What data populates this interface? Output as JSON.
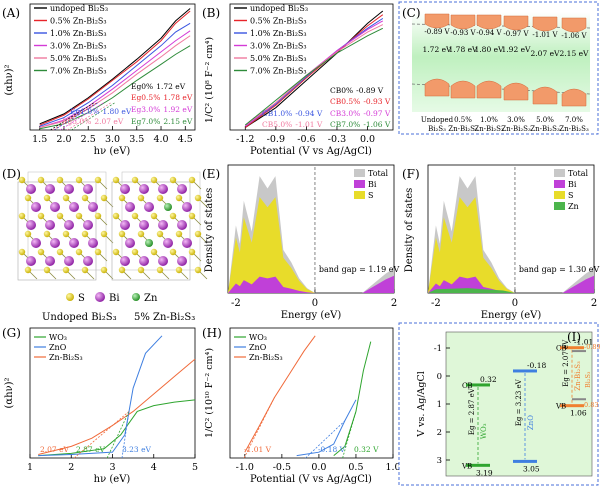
{
  "colors": {
    "black": "#000000",
    "red": "#e8242a",
    "blue": "#3a55e0",
    "magenta": "#d43bd6",
    "pink": "#f07aa0",
    "green": "#2e8b3a",
    "wo3": "#2fa52f",
    "zno": "#3f7fe0",
    "znbis": "#f06a3a",
    "teal_bg": "#dff7f0",
    "gold": "#c8b400",
    "violet": "#b030c8",
    "gray": "#9a9a9a",
    "dos_green": "#4cb54c",
    "orange": "#f08030"
  },
  "panelA": {
    "label": "(A)",
    "ylabel": "(αhν)²",
    "xlabel": "hν (eV)",
    "xticks": [
      "1.5",
      "2.0",
      "2.5",
      "3.0",
      "3.5",
      "4.0",
      "4.5"
    ],
    "legend": [
      "undoped Bi₂S₃",
      "0.5% Zn-Bi₂S₃",
      "1.0% Zn-Bi₂S₃",
      "3.0% Zn-Bi₂S₃",
      "5.0% Zn-Bi₂S₃",
      "7.0% Zn-Bi₂S₃"
    ],
    "eg": [
      {
        "name": "Eg0%",
        "value": "1.72 eV"
      },
      {
        "name": "Eg0.5%",
        "value": "1.78 eV"
      },
      {
        "name": "Eg1.0%",
        "value": "1.80 eV"
      },
      {
        "name": "Eg3.0%",
        "value": "1.92 eV"
      },
      {
        "name": "Eg5.0%",
        "value": "2.07 eV"
      },
      {
        "name": "Eg7.0%",
        "value": "2.15 eV"
      }
    ]
  },
  "panelB": {
    "label": "(B)",
    "ylabel": "1/C² (10⁸ F⁻² cm⁴)",
    "xlabel": "Potential (V vs Ag/AgCl)",
    "xticks": [
      "-1.2",
      "-0.9",
      "-0.6",
      "-0.3",
      "0.0"
    ],
    "legend": [
      "undoped Bi₂S₃",
      "0.5% Zn-Bi₂S₃",
      "1.0% Zn-Bi₂S₃",
      "3.0% Zn-Bi₂S₃",
      "5.0% Zn-Bi₂S₃",
      "7.0% Zn-Bi₂S₃"
    ],
    "cb": [
      {
        "name": "CB0%",
        "value": "-0.89 V"
      },
      {
        "name": "CB0.5%",
        "value": "-0.93 V"
      },
      {
        "name": "CB1.0%",
        "value": "-0.94 V"
      },
      {
        "name": "CB3.0%",
        "value": "-0.97 V"
      },
      {
        "name": "CB5.0%",
        "value": "-1.01 V"
      },
      {
        "name": "CB7.0%",
        "value": "-1.06 V"
      }
    ]
  },
  "panelC": {
    "label": "(C)",
    "cb_values": [
      "-0.89 V",
      "-0.93 V",
      "-0.94 V",
      "-0.97 V",
      "-1.01 V",
      "-1.06 V"
    ],
    "eg_values": [
      "1.72 eV",
      "1.78 eV",
      "1.80 eV",
      "1.92 eV",
      "2.07 eV",
      "2.15 eV"
    ],
    "names_top": [
      "Undoped",
      "0.5%",
      "1.0%",
      "3.0%",
      "5.0%",
      "7.0%"
    ],
    "names_bottom": [
      "Bi₂S₃",
      "Zn-Bi₂S₃",
      "Zn-Bi₂S₃",
      "Zn-Bi₂S₃",
      "Zn-Bi₂S₃",
      "Zn-Bi₂S₃"
    ]
  },
  "panelD": {
    "label": "(D)",
    "legend": [
      "S",
      "Bi",
      "Zn"
    ],
    "caption_left": "Undoped Bi₂S₃",
    "caption_right": "5% Zn-Bi₂S₃"
  },
  "panelE": {
    "label": "(E)",
    "ylabel": "Density of states",
    "xlabel": "Energy (eV)",
    "xticks": [
      "-2",
      "0",
      "2"
    ],
    "legend": [
      "Total",
      "Bi",
      "S"
    ],
    "gap": "band gap = 1.19 eV"
  },
  "panelF": {
    "label": "(F)",
    "ylabel": "Density of states",
    "xlabel": "Energy (eV)",
    "xticks": [
      "-2",
      "0",
      "2"
    ],
    "legend": [
      "Total",
      "Bi",
      "S",
      "Zn"
    ],
    "gap": "band gap = 1.30 eV"
  },
  "panelG": {
    "label": "(G)",
    "ylabel": "(αhν)²",
    "xlabel": "hν (eV)",
    "xticks": [
      "1",
      "2",
      "3",
      "4",
      "5"
    ],
    "legend": [
      "WO₃",
      "ZnO",
      "Zn-Bi₂S₃"
    ],
    "annot": [
      "2.07 eV",
      "2.87 eV",
      "3.23 eV"
    ]
  },
  "panelH": {
    "label": "(H)",
    "ylabel": "1/C² (10¹⁰ F⁻² cm⁴)",
    "xlabel": "Potential (V vs Ag/AgCl)",
    "xticks": [
      "-1.0",
      "-0.5",
      "0.0",
      "0.5",
      "1.0"
    ],
    "legend": [
      "WO₃",
      "ZnO",
      "Zn-Bi₂S₃"
    ],
    "annot": [
      "-1.01 V",
      "-0.18 V",
      "0.32 V"
    ]
  },
  "panelI": {
    "label": "(I)",
    "ylabel": "V vs. Ag/AgCl",
    "yticks": [
      "-1",
      "0",
      "1",
      "2",
      "3"
    ],
    "wo3": {
      "cb": "0.32",
      "vb": "3.19",
      "eg": "Eg = 2.87 eV",
      "name": "WO₃"
    },
    "zno": {
      "cb": "-0.18",
      "vb": "3.05",
      "eg": "Eg = 3.23 eV",
      "name": "ZnO"
    },
    "zbs": {
      "cb": "-1.01",
      "vb": "1.06",
      "eg": "Eg = 2.07 eV",
      "cb2": "-0.89",
      "vb2": "0.83",
      "name": "Zn-Bi₂S₃",
      "name2": "Bi₂S₃",
      "cb_lbl": "CB",
      "vb_lbl": "VB"
    },
    "cb_lbl": "CB",
    "vb_lbl": "VB"
  },
  "chart_data": [
    {
      "type": "line",
      "title": "",
      "xlabel": "hν (eV)",
      "ylabel": "(αhν)²",
      "series": [
        {
          "name": "undoped Bi₂S₃",
          "x": [
            1.5,
            2.0,
            2.5,
            3.0,
            3.5,
            4.0,
            4.3,
            4.6
          ],
          "y": [
            0.05,
            0.13,
            0.26,
            0.41,
            0.57,
            0.74,
            0.88,
            0.98
          ]
        },
        {
          "name": "0.5% Zn-Bi₂S₃",
          "x": [
            1.5,
            2.0,
            2.5,
            3.0,
            3.5,
            4.0,
            4.3,
            4.6
          ],
          "y": [
            0.04,
            0.12,
            0.25,
            0.4,
            0.55,
            0.72,
            0.86,
            0.96
          ]
        },
        {
          "name": "1.0% Zn-Bi₂S₃",
          "x": [
            1.5,
            2.0,
            2.5,
            3.0,
            3.5,
            4.0,
            4.3,
            4.6
          ],
          "y": [
            0.03,
            0.1,
            0.22,
            0.36,
            0.52,
            0.68,
            0.79,
            0.86
          ]
        },
        {
          "name": "3.0% Zn-Bi₂S₃",
          "x": [
            1.5,
            2.0,
            2.5,
            3.0,
            3.5,
            4.0,
            4.3,
            4.6
          ],
          "y": [
            0.02,
            0.08,
            0.19,
            0.33,
            0.48,
            0.63,
            0.72,
            0.8
          ]
        },
        {
          "name": "5.0% Zn-Bi₂S₃",
          "x": [
            1.5,
            2.0,
            2.5,
            3.0,
            3.5,
            4.0,
            4.3,
            4.6
          ],
          "y": [
            0.02,
            0.07,
            0.17,
            0.3,
            0.45,
            0.59,
            0.68,
            0.76
          ]
        },
        {
          "name": "7.0% Zn-Bi₂S₃",
          "x": [
            1.5,
            2.0,
            2.5,
            3.0,
            3.5,
            4.0,
            4.3,
            4.6
          ],
          "y": [
            0.01,
            0.05,
            0.14,
            0.26,
            0.4,
            0.53,
            0.61,
            0.68
          ]
        }
      ]
    },
    {
      "type": "line",
      "title": "",
      "xlabel": "Potential (V vs Ag/AgCl)",
      "ylabel": "1/C² (10⁸ F⁻² cm⁴)",
      "series": [
        {
          "name": "undoped Bi₂S₃",
          "x": [
            -1.2,
            -0.9,
            -0.6,
            -0.3,
            0.0,
            0.15
          ],
          "y": [
            0.02,
            0.18,
            0.4,
            0.62,
            0.86,
            0.96
          ]
        },
        {
          "name": "0.5% Zn-Bi₂S₃",
          "x": [
            -1.2,
            -0.9,
            -0.6,
            -0.3,
            0.0,
            0.15
          ],
          "y": [
            0.02,
            0.2,
            0.42,
            0.63,
            0.84,
            0.93
          ]
        },
        {
          "name": "1.0% Zn-Bi₂S₃",
          "x": [
            -1.2,
            -0.9,
            -0.6,
            -0.3,
            0.0,
            0.15
          ],
          "y": [
            0.03,
            0.21,
            0.43,
            0.64,
            0.82,
            0.9
          ]
        },
        {
          "name": "3.0% Zn-Bi₂S₃",
          "x": [
            -1.2,
            -0.9,
            -0.6,
            -0.3,
            0.0,
            0.15
          ],
          "y": [
            0.03,
            0.22,
            0.44,
            0.64,
            0.81,
            0.88
          ]
        },
        {
          "name": "5.0% Zn-Bi₂S₃",
          "x": [
            -1.2,
            -0.9,
            -0.6,
            -0.3,
            0.0,
            0.15
          ],
          "y": [
            0.04,
            0.22,
            0.44,
            0.63,
            0.79,
            0.85
          ]
        },
        {
          "name": "7.0% Zn-Bi₂S₃",
          "x": [
            -1.2,
            -0.9,
            -0.6,
            -0.3,
            0.0,
            0.15
          ],
          "y": [
            0.04,
            0.24,
            0.44,
            0.62,
            0.76,
            0.82
          ]
        }
      ]
    },
    {
      "type": "line",
      "title": "",
      "xlabel": "hν (eV)",
      "ylabel": "(αhν)²",
      "series": [
        {
          "name": "WO₃",
          "x": [
            1.2,
            2.0,
            2.8,
            3.2,
            3.6,
            4.0,
            4.5,
            5.0
          ],
          "y": [
            0.02,
            0.04,
            0.08,
            0.2,
            0.4,
            0.45,
            0.48,
            0.5
          ]
        },
        {
          "name": "ZnO",
          "x": [
            1.2,
            2.0,
            3.0,
            3.3,
            3.5,
            3.8,
            4.2
          ],
          "y": [
            0.02,
            0.03,
            0.05,
            0.2,
            0.6,
            0.9,
            1.05
          ]
        },
        {
          "name": "Zn-Bi₂S₃",
          "x": [
            1.2,
            2.0,
            2.5,
            3.0,
            3.5,
            4.0,
            4.5,
            5.0
          ],
          "y": [
            0.03,
            0.1,
            0.17,
            0.28,
            0.4,
            0.55,
            0.7,
            0.85
          ]
        }
      ]
    },
    {
      "type": "line",
      "title": "",
      "xlabel": "Potential (V vs Ag/AgCl)",
      "ylabel": "1/C² (10¹⁰ F⁻² cm⁴)",
      "series": [
        {
          "name": "WO₃",
          "x": [
            0.2,
            0.35,
            0.5,
            0.6,
            0.7
          ],
          "y": [
            0.02,
            0.1,
            0.4,
            0.75,
            1.0
          ]
        },
        {
          "name": "ZnO",
          "x": [
            -0.3,
            0.0,
            0.2,
            0.35,
            0.5
          ],
          "y": [
            0.02,
            0.05,
            0.12,
            0.32,
            0.5
          ]
        },
        {
          "name": "Zn-Bi₂S₃",
          "x": [
            -1.0,
            -0.8,
            -0.6,
            -0.4,
            -0.2,
            -0.05
          ],
          "y": [
            0.05,
            0.28,
            0.52,
            0.72,
            0.92,
            1.05
          ]
        }
      ]
    }
  ]
}
